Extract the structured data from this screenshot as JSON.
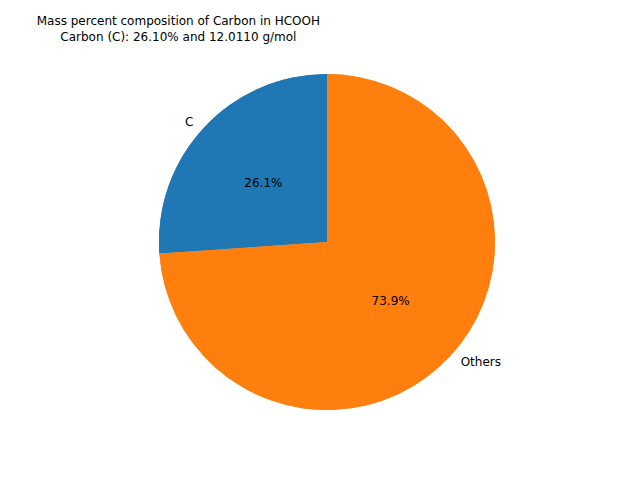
{
  "chart_data": {
    "type": "pie",
    "title": "Mass percent composition of Carbon in HCOOH\nCarbon (C): 26.10% and 12.0110 g/mol",
    "categories": [
      "C",
      "Others"
    ],
    "values": [
      26.1,
      73.9
    ],
    "value_labels": [
      "26.1%",
      "73.9%"
    ],
    "colors": [
      "#1f77b4",
      "#ff7f0e"
    ],
    "data_labels": true
  }
}
